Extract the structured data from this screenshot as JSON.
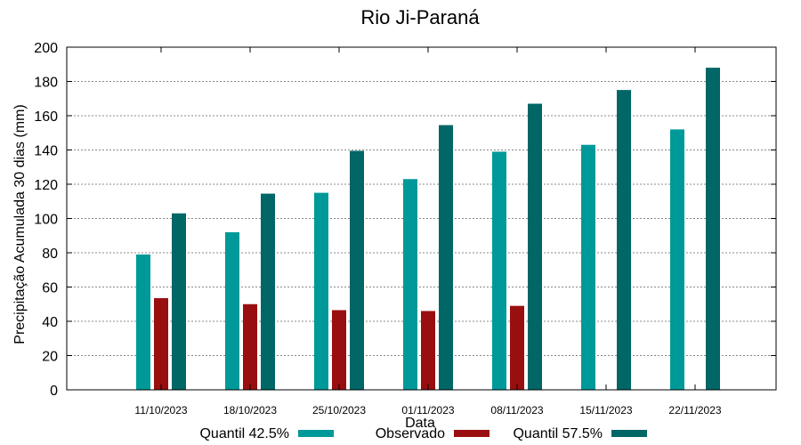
{
  "chart_data": {
    "type": "bar",
    "title": "Rio Ji-Paraná",
    "xlabel": "Data",
    "ylabel": "Precipitação Acumulada 30 dias (mm)",
    "ylim": [
      0,
      200
    ],
    "yticks": [
      0,
      20,
      40,
      60,
      80,
      100,
      120,
      140,
      160,
      180,
      200
    ],
    "grid": true,
    "legend_position": "bottom",
    "categories": [
      "11/10/2023",
      "18/10/2023",
      "25/10/2023",
      "01/11/2023",
      "08/11/2023",
      "15/11/2023",
      "22/11/2023"
    ],
    "series": [
      {
        "name": "Quantil 42.5%",
        "color": "#009999",
        "values": [
          79,
          92,
          115,
          123,
          139,
          143,
          152
        ]
      },
      {
        "name": "Observado",
        "color": "#990f0f",
        "values": [
          53.5,
          50,
          46.5,
          46,
          49,
          null,
          null
        ]
      },
      {
        "name": "Quantil 57.5%",
        "color": "#006666",
        "values": [
          103,
          114.5,
          139.5,
          154.5,
          167,
          175,
          188
        ]
      }
    ]
  }
}
